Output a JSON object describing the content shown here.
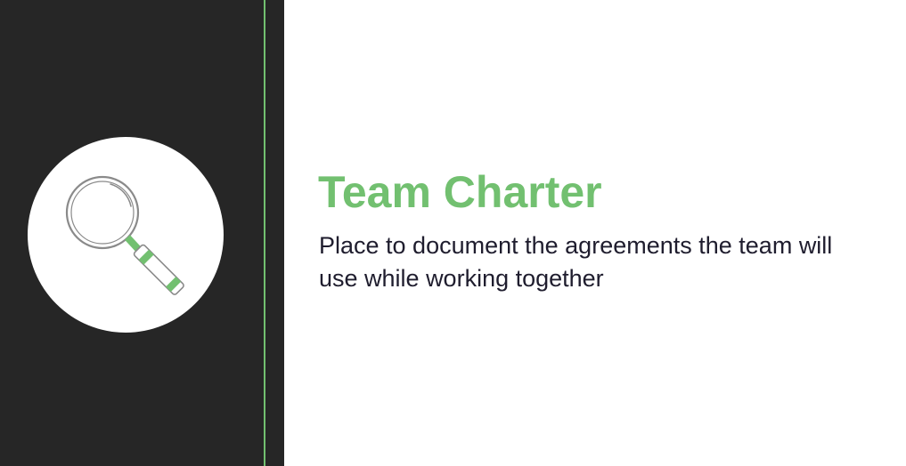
{
  "slide": {
    "title": "Team Charter",
    "subtitle": "Place to document the agreements the team will use while working together",
    "icon": "magnifying-glass-icon"
  },
  "colors": {
    "accent": "#72c070",
    "panel": "#262626",
    "text": "#1f1d2e",
    "background": "#ffffff"
  }
}
